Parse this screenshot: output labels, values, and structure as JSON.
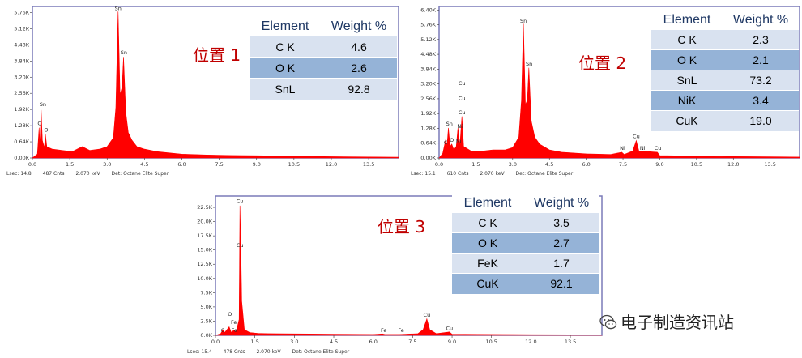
{
  "chart_data": [
    {
      "type": "area",
      "position_label": "位置 1",
      "x_ticks": [
        "0.0",
        "1.5",
        "3.0",
        "4.5",
        "6.0",
        "7.5",
        "9.0",
        "10.5",
        "12.0",
        "13.5"
      ],
      "x_tick_values": [
        0,
        1.5,
        3,
        4.5,
        6,
        7.5,
        9,
        10.5,
        12,
        13.5
      ],
      "xlim": [
        0,
        14.7
      ],
      "y_ticks": [
        "0.00K",
        "0.64K",
        "1.28K",
        "1.92K",
        "2.56K",
        "3.20K",
        "3.84K",
        "4.48K",
        "5.12K",
        "5.76K"
      ],
      "y_tick_values": [
        0,
        0.64,
        1.28,
        1.92,
        2.56,
        3.2,
        3.84,
        4.48,
        5.12,
        5.76
      ],
      "ylim": [
        0,
        6.0
      ],
      "spectrum": [
        [
          0.0,
          0
        ],
        [
          0.2,
          0.15
        ],
        [
          0.27,
          1.2
        ],
        [
          0.3,
          0.5
        ],
        [
          0.35,
          1.9
        ],
        [
          0.4,
          0.7
        ],
        [
          0.48,
          0.4
        ],
        [
          0.52,
          0.95
        ],
        [
          0.58,
          0.45
        ],
        [
          0.8,
          0.35
        ],
        [
          1.2,
          0.3
        ],
        [
          1.6,
          0.25
        ],
        [
          2.0,
          0.45
        ],
        [
          2.3,
          0.3
        ],
        [
          2.7,
          0.35
        ],
        [
          3.0,
          0.45
        ],
        [
          3.25,
          0.8
        ],
        [
          3.35,
          2.0
        ],
        [
          3.44,
          5.8
        ],
        [
          3.52,
          2.5
        ],
        [
          3.6,
          2.8
        ],
        [
          3.66,
          4.0
        ],
        [
          3.75,
          1.8
        ],
        [
          3.85,
          1.0
        ],
        [
          4.0,
          0.7
        ],
        [
          4.2,
          0.45
        ],
        [
          4.5,
          0.35
        ],
        [
          5.0,
          0.25
        ],
        [
          6.0,
          0.15
        ],
        [
          7.0,
          0.12
        ],
        [
          8.0,
          0.1
        ],
        [
          9.0,
          0.09
        ],
        [
          10.5,
          0.07
        ],
        [
          12.0,
          0.05
        ],
        [
          13.5,
          0.04
        ],
        [
          14.7,
          0.03
        ]
      ],
      "peak_labels": [
        {
          "text": "Sn",
          "x": 0.42,
          "y": 2.05
        },
        {
          "text": "C",
          "x": 0.28,
          "y": 1.3
        },
        {
          "text": "O",
          "x": 0.55,
          "y": 1.05
        },
        {
          "text": "Sn",
          "x": 3.44,
          "y": 5.85
        },
        {
          "text": "Sn",
          "x": 3.67,
          "y": 4.1
        }
      ],
      "footer": {
        "lsec": "Lsec: 14.8",
        "cnts": "487 Cnts",
        "kev": "2.070 keV",
        "det": "Det: Octane Elite Super"
      },
      "table": {
        "header": [
          "Element",
          "Weight %"
        ],
        "rows": [
          [
            "C K",
            "4.6"
          ],
          [
            "O K",
            "2.6"
          ],
          [
            "SnL",
            "92.8"
          ]
        ]
      }
    },
    {
      "type": "area",
      "position_label": "位置 2",
      "x_ticks": [
        "0.0",
        "1.5",
        "3.0",
        "4.5",
        "6.0",
        "7.5",
        "9.0",
        "10.5",
        "12.0",
        "13.5"
      ],
      "x_tick_values": [
        0,
        1.5,
        3,
        4.5,
        6,
        7.5,
        9,
        10.5,
        12,
        13.5
      ],
      "xlim": [
        0,
        14.7
      ],
      "y_ticks": [
        "0.00K",
        "0.64K",
        "1.28K",
        "1.92K",
        "2.56K",
        "3.20K",
        "3.84K",
        "4.48K",
        "5.12K",
        "5.76K",
        "6.40K"
      ],
      "y_tick_values": [
        0,
        0.64,
        1.28,
        1.92,
        2.56,
        3.2,
        3.84,
        4.48,
        5.12,
        5.76,
        6.4
      ],
      "ylim": [
        0,
        6.55
      ],
      "spectrum": [
        [
          0.0,
          0
        ],
        [
          0.15,
          0.2
        ],
        [
          0.27,
          0.8
        ],
        [
          0.32,
          0.5
        ],
        [
          0.38,
          1.3
        ],
        [
          0.45,
          0.5
        ],
        [
          0.52,
          0.6
        ],
        [
          0.6,
          0.35
        ],
        [
          0.7,
          0.5
        ],
        [
          0.77,
          1.3
        ],
        [
          0.85,
          0.55
        ],
        [
          0.93,
          1.8
        ],
        [
          1.0,
          0.5
        ],
        [
          1.3,
          0.3
        ],
        [
          1.8,
          0.3
        ],
        [
          2.2,
          0.35
        ],
        [
          2.7,
          0.35
        ],
        [
          3.0,
          0.45
        ],
        [
          3.25,
          0.9
        ],
        [
          3.36,
          2.5
        ],
        [
          3.44,
          5.8
        ],
        [
          3.52,
          2.3
        ],
        [
          3.6,
          2.5
        ],
        [
          3.66,
          3.9
        ],
        [
          3.76,
          1.6
        ],
        [
          3.9,
          0.9
        ],
        [
          4.1,
          0.6
        ],
        [
          4.5,
          0.35
        ],
        [
          5.0,
          0.25
        ],
        [
          6.0,
          0.18
        ],
        [
          7.0,
          0.15
        ],
        [
          7.45,
          0.25
        ],
        [
          7.55,
          0.15
        ],
        [
          7.9,
          0.3
        ],
        [
          8.04,
          0.75
        ],
        [
          8.15,
          0.3
        ],
        [
          8.9,
          0.25
        ],
        [
          9.0,
          0.1
        ],
        [
          10.5,
          0.08
        ],
        [
          12.0,
          0.06
        ],
        [
          13.5,
          0.05
        ],
        [
          14.7,
          0.04
        ]
      ],
      "peak_labels": [
        {
          "text": "Sn",
          "x": 0.42,
          "y": 1.4
        },
        {
          "text": "O",
          "x": 0.52,
          "y": 0.7
        },
        {
          "text": "C",
          "x": 0.27,
          "y": 0.6
        },
        {
          "text": "Cu",
          "x": 0.93,
          "y": 1.9
        },
        {
          "text": "Cu",
          "x": 0.93,
          "y": 2.5
        },
        {
          "text": "Cu",
          "x": 0.93,
          "y": 3.15
        },
        {
          "text": "Ni",
          "x": 0.85,
          "y": 1.3
        },
        {
          "text": "Ni",
          "x": 0.8,
          "y": 0.65
        },
        {
          "text": "Sn",
          "x": 3.44,
          "y": 5.85
        },
        {
          "text": "Sn",
          "x": 3.67,
          "y": 4.0
        },
        {
          "text": "Ni",
          "x": 7.48,
          "y": 0.35
        },
        {
          "text": "Cu",
          "x": 8.04,
          "y": 0.85
        },
        {
          "text": "Ni",
          "x": 8.3,
          "y": 0.35
        },
        {
          "text": "Cu",
          "x": 8.92,
          "y": 0.35
        }
      ],
      "footer": {
        "lsec": "Lsec: 15.1",
        "cnts": "610 Cnts",
        "kev": "2.070 keV",
        "det": "Det: Octane Elite Super"
      },
      "table": {
        "header": [
          "Element",
          "Weight %"
        ],
        "rows": [
          [
            "C K",
            "2.3"
          ],
          [
            "O K",
            "2.1"
          ],
          [
            "SnL",
            "73.2"
          ],
          [
            "NiK",
            "3.4"
          ],
          [
            "CuK",
            "19.0"
          ]
        ]
      }
    },
    {
      "type": "area",
      "position_label": "位置 3",
      "x_ticks": [
        "0.0",
        "1.5",
        "3.0",
        "4.5",
        "6.0",
        "7.5",
        "9.0",
        "10.5",
        "12.0",
        "13.5"
      ],
      "x_tick_values": [
        0,
        1.5,
        3,
        4.5,
        6,
        7.5,
        9,
        10.5,
        12,
        13.5
      ],
      "xlim": [
        0,
        14.7
      ],
      "y_ticks": [
        "0.0K",
        "2.5K",
        "5.0K",
        "7.5K",
        "10.0K",
        "12.5K",
        "15.0K",
        "17.5K",
        "20.0K",
        "22.5K"
      ],
      "y_tick_values": [
        0,
        2.5,
        5,
        7.5,
        10,
        12.5,
        15,
        17.5,
        20,
        22.5
      ],
      "ylim": [
        0,
        24.5
      ],
      "spectrum": [
        [
          0.0,
          0
        ],
        [
          0.2,
          0.3
        ],
        [
          0.28,
          1.0
        ],
        [
          0.35,
          0.5
        ],
        [
          0.52,
          1.5
        ],
        [
          0.6,
          0.5
        ],
        [
          0.7,
          0.9
        ],
        [
          0.75,
          0.6
        ],
        [
          0.8,
          0.9
        ],
        [
          0.9,
          2.8
        ],
        [
          0.93,
          22.8
        ],
        [
          0.97,
          14.0
        ],
        [
          1.0,
          6.0
        ],
        [
          1.1,
          1.0
        ],
        [
          1.3,
          0.5
        ],
        [
          1.6,
          0.35
        ],
        [
          2.0,
          0.3
        ],
        [
          3.0,
          0.25
        ],
        [
          4.5,
          0.2
        ],
        [
          6.0,
          0.15
        ],
        [
          6.35,
          0.25
        ],
        [
          6.45,
          0.15
        ],
        [
          7.0,
          0.15
        ],
        [
          7.7,
          0.3
        ],
        [
          7.9,
          1.0
        ],
        [
          8.04,
          2.9
        ],
        [
          8.15,
          1.0
        ],
        [
          8.4,
          0.3
        ],
        [
          8.9,
          0.6
        ],
        [
          9.0,
          0.2
        ],
        [
          10.5,
          0.15
        ],
        [
          12.0,
          0.12
        ],
        [
          13.5,
          0.1
        ],
        [
          14.7,
          0.08
        ]
      ],
      "peak_labels": [
        {
          "text": "Cu",
          "x": 0.93,
          "y": 23.3
        },
        {
          "text": "Cu",
          "x": 0.93,
          "y": 15.5
        },
        {
          "text": "O",
          "x": 0.55,
          "y": 3.4
        },
        {
          "text": "Fe",
          "x": 0.7,
          "y": 2.0
        },
        {
          "text": "C",
          "x": 0.28,
          "y": 0.6
        },
        {
          "text": "Fe",
          "x": 0.72,
          "y": 0.6
        },
        {
          "text": "Fe",
          "x": 6.4,
          "y": 0.6
        },
        {
          "text": "Fe",
          "x": 7.06,
          "y": 0.6
        },
        {
          "text": "Cu",
          "x": 8.04,
          "y": 3.3
        },
        {
          "text": "Cu",
          "x": 8.9,
          "y": 0.9
        }
      ],
      "footer": {
        "lsec": "Lsec: 15.4",
        "cnts": "478 Cnts",
        "kev": "2.070 keV",
        "det": "Det: Octane Elite Super"
      },
      "table": {
        "header": [
          "Element",
          "Weight %"
        ],
        "rows": [
          [
            "C K",
            "3.5"
          ],
          [
            "O K",
            "2.7"
          ],
          [
            "FeK",
            "1.7"
          ],
          [
            "CuK",
            "92.1"
          ]
        ]
      }
    }
  ],
  "watermark": {
    "text": "电子制造资讯站",
    "icon": "wechat-icon"
  },
  "colors": {
    "spectrum": "#ff0000",
    "axis": "#7a7ab8",
    "position_label": "#c00000",
    "header": "#1f3864",
    "row_light": "#d9e2f0",
    "row_dark": "#95b3d7"
  }
}
